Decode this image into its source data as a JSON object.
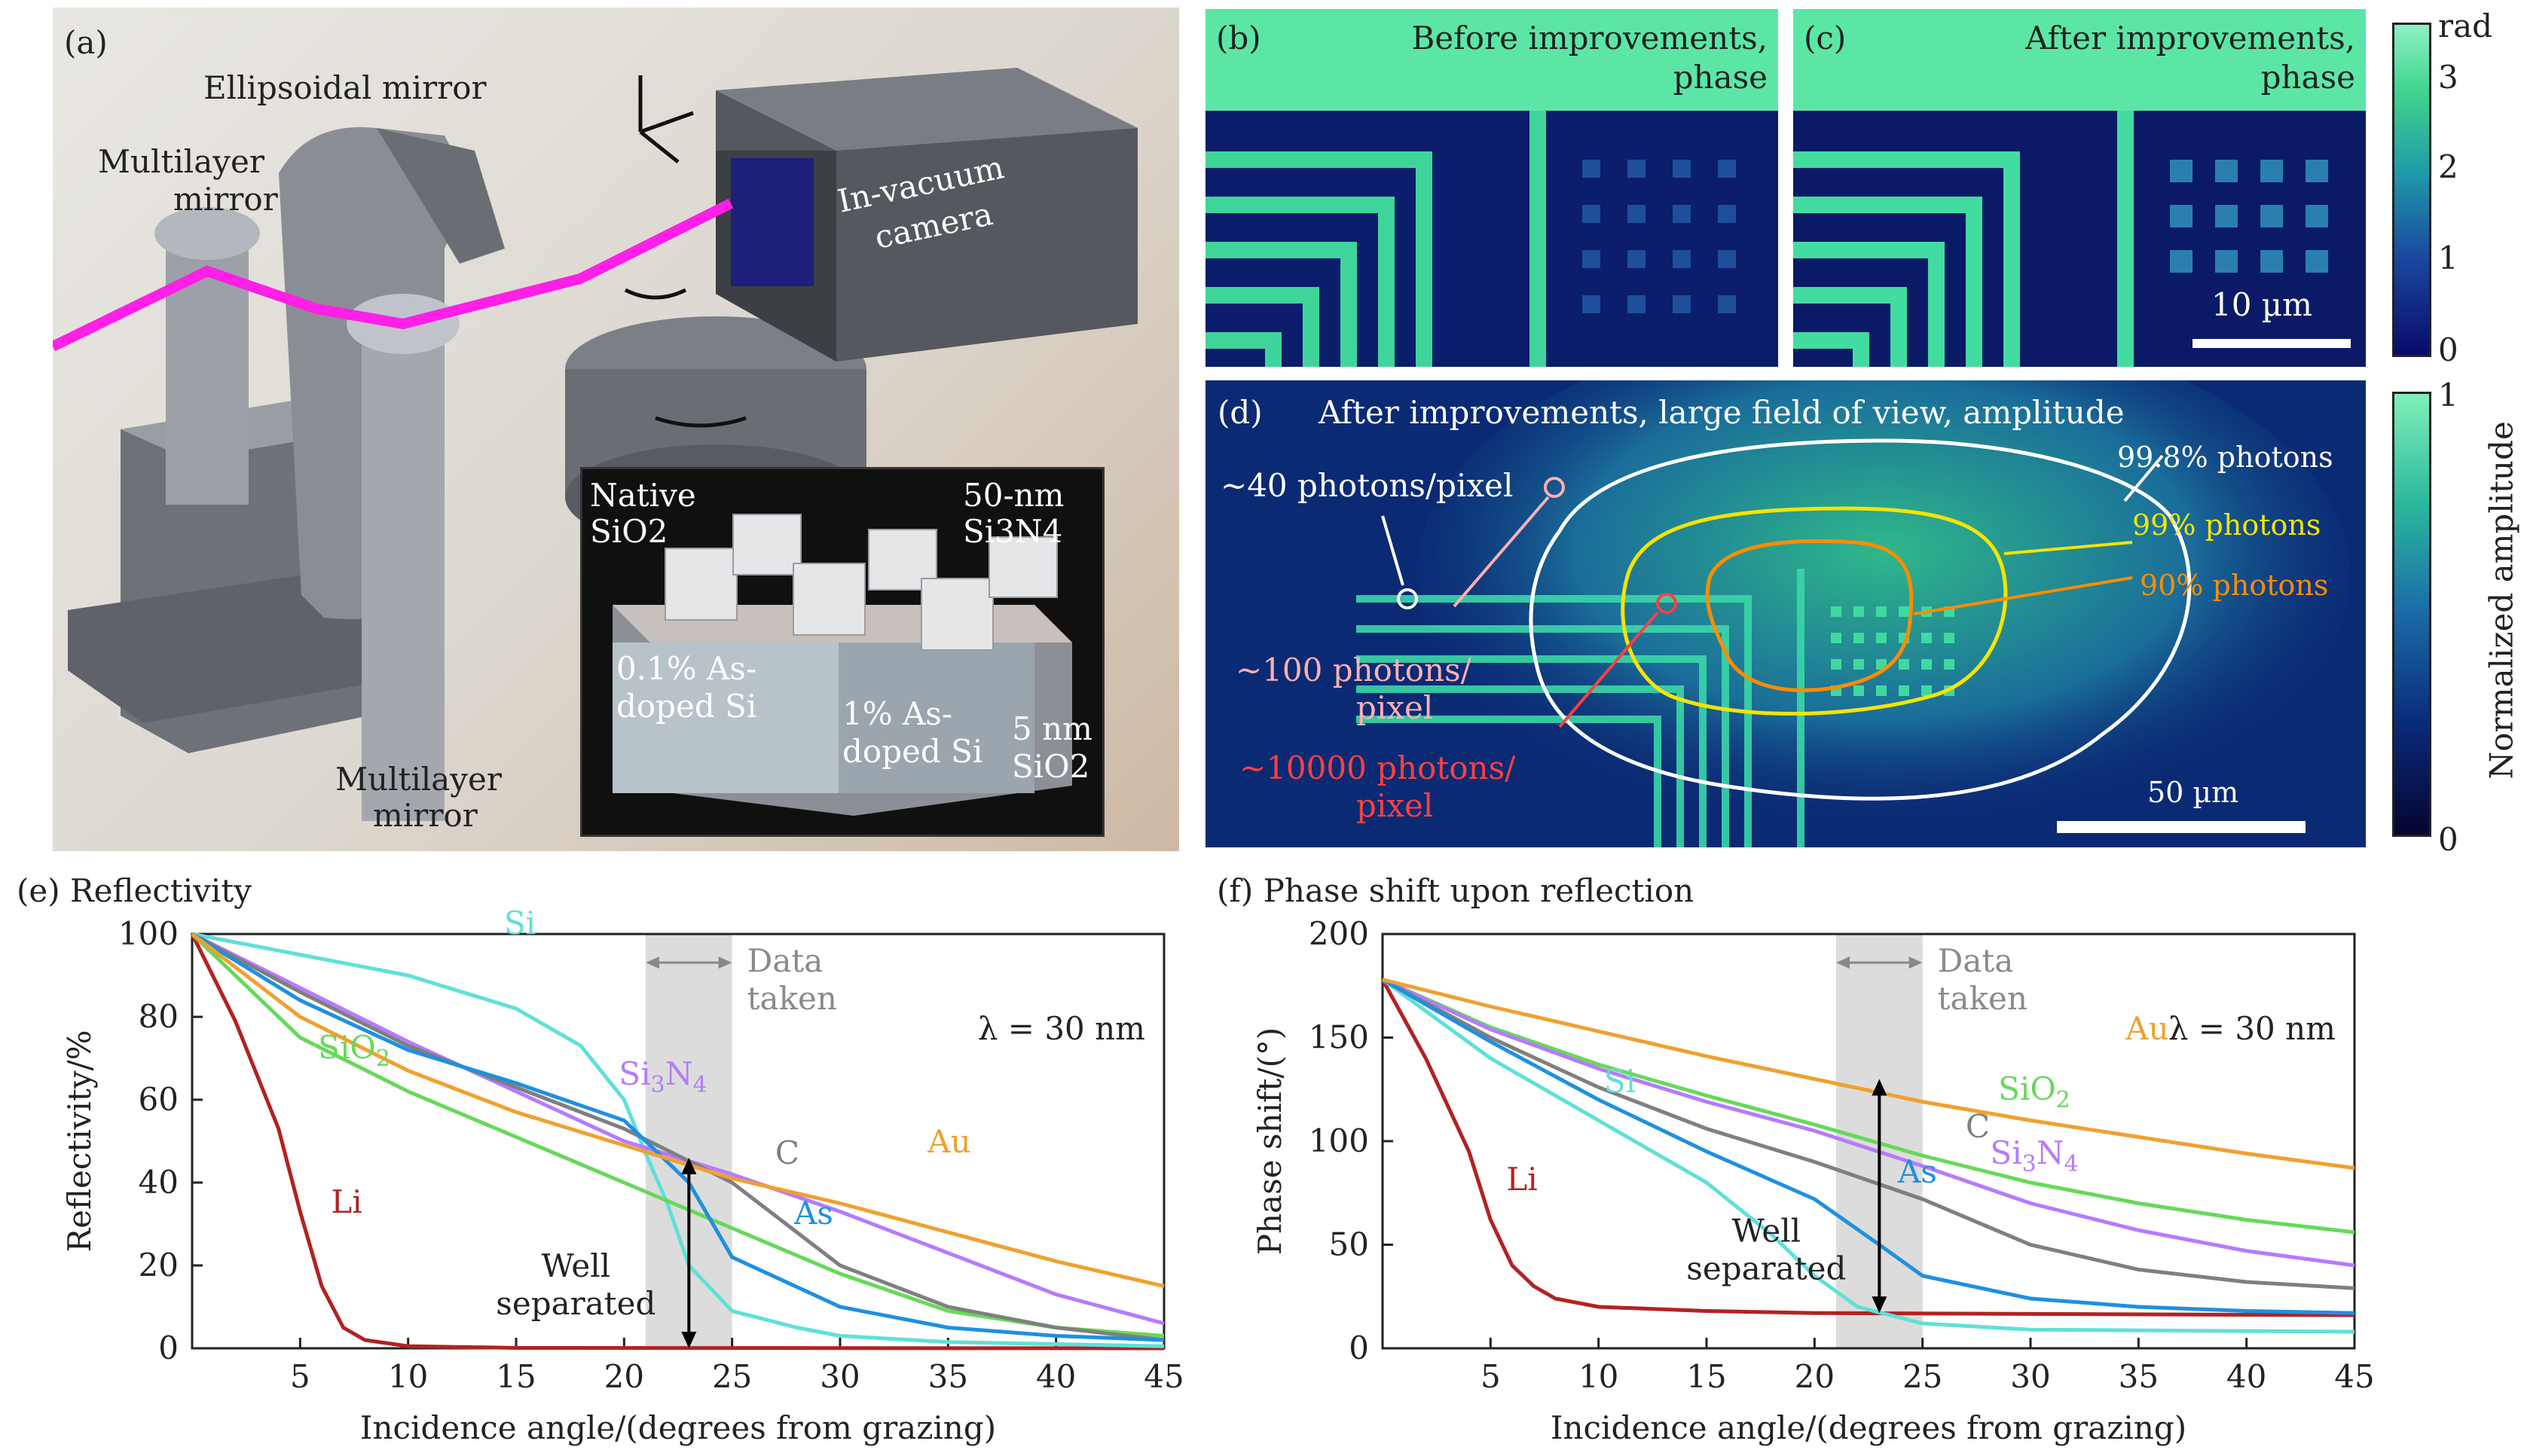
{
  "panel_a": {
    "tag": "(a)",
    "ellipsoidal": "Ellipsoidal mirror",
    "multilayer_top_1": "Multilayer",
    "multilayer_top_2": "mirror",
    "camera_1": "In-vacuum",
    "camera_2": "camera",
    "multilayer_bottom_1": "Multilayer",
    "multilayer_bottom_2": "mirror",
    "inset": {
      "native_1": "Native",
      "native_2": "SiO2",
      "sin_1": "50-nm",
      "sin_2": "Si3N4",
      "doped01_1": "0.1% As-",
      "doped01_2": "doped Si",
      "doped1_1": "1% As-",
      "doped1_2": "doped Si",
      "sio2_1": "5 nm",
      "sio2_2": "SiO2"
    }
  },
  "panel_b": {
    "tag": "(b)",
    "title_1": "Before improvements,",
    "title_2": "phase"
  },
  "panel_c": {
    "tag": "(c)",
    "title_1": "After improvements,",
    "title_2": "phase",
    "scalebar": "10 µm"
  },
  "colorbar_phase": {
    "unit": "rad",
    "ticks": [
      "3",
      "2",
      "1",
      "0"
    ]
  },
  "panel_d": {
    "tag": "(d)",
    "title": "After improvements, large field of view, amplitude",
    "c998": "99.8% photons",
    "c99": "99% photons",
    "c90": "90% photons",
    "p40": "~40 photons/pixel",
    "p100_1": "~100 photons/",
    "p100_2": "pixel",
    "p10000_1": "~10000 photons/",
    "p10000_2": "pixel",
    "scalebar": "50 µm"
  },
  "colorbar_amp": {
    "label": "Normalized amplitude",
    "ticks": [
      "1",
      "0"
    ]
  },
  "colors": {
    "Li": "#b22222",
    "Si": "#5fe0d8",
    "SiO2": "#66d95a",
    "Si3N4": "#b57bff",
    "C": "#7f7f7f",
    "As": "#1e90e0",
    "Au": "#f0a030"
  },
  "chart_data": [
    {
      "type": "line",
      "title": "(e) Reflectivity",
      "xlabel": "Incidence angle/(degrees from grazing)",
      "ylabel": "Reflectivity/%",
      "xlim": [
        0,
        45
      ],
      "ylim": [
        0,
        100
      ],
      "xticks": [
        "5",
        "10",
        "15",
        "20",
        "25",
        "30",
        "35",
        "40",
        "45"
      ],
      "yticks": [
        "0",
        "20",
        "40",
        "60",
        "80",
        "100"
      ],
      "annotation": "λ = 30 nm",
      "band_label_1": "Data",
      "band_label_2": "taken",
      "band": [
        21,
        25
      ],
      "arrow_x": 23,
      "arrow_y": [
        0,
        46
      ],
      "arrow_label_1": "Well",
      "arrow_label_2": "separated",
      "series": [
        {
          "name": "Li",
          "x": [
            0,
            2,
            4,
            5,
            6,
            7,
            8,
            10,
            15,
            45
          ],
          "y": [
            100,
            79,
            53,
            33,
            15,
            5,
            2,
            0.5,
            0.1,
            0
          ]
        },
        {
          "name": "Si",
          "x": [
            0,
            5,
            10,
            15,
            18,
            20,
            21,
            22,
            23,
            25,
            28,
            30,
            35,
            45
          ],
          "y": [
            100,
            95,
            90,
            82,
            73,
            60,
            47,
            35,
            20,
            9,
            5,
            3,
            1.5,
            0.5
          ]
        },
        {
          "name": "SiO2",
          "x": [
            0,
            5,
            10,
            15,
            20,
            25,
            30,
            35,
            40,
            45
          ],
          "y": [
            100,
            75,
            62,
            51,
            40,
            29,
            18,
            9,
            5,
            3
          ]
        },
        {
          "name": "Si3N4",
          "x": [
            0,
            5,
            10,
            15,
            20,
            25,
            30,
            35,
            40,
            45
          ],
          "y": [
            100,
            87,
            74,
            62,
            50,
            42,
            33,
            23,
            13,
            6
          ]
        },
        {
          "name": "C",
          "x": [
            0,
            5,
            10,
            15,
            20,
            25,
            28,
            30,
            35,
            40,
            45
          ],
          "y": [
            100,
            86,
            73,
            63,
            53,
            40,
            28,
            20,
            10,
            5,
            2
          ]
        },
        {
          "name": "As",
          "x": [
            0,
            5,
            10,
            15,
            20,
            23,
            25,
            30,
            35,
            40,
            45
          ],
          "y": [
            100,
            84,
            72,
            64,
            55,
            40,
            22,
            10,
            5,
            3,
            2
          ]
        },
        {
          "name": "Au",
          "x": [
            0,
            5,
            10,
            15,
            20,
            25,
            30,
            35,
            40,
            45
          ],
          "y": [
            100,
            80,
            67,
            57,
            49,
            41,
            35,
            28,
            21,
            15
          ]
        }
      ]
    },
    {
      "type": "line",
      "title": "(f) Phase shift upon reflection",
      "xlabel": "Incidence angle/(degrees from grazing)",
      "ylabel": "Phase shift/(°)",
      "xlim": [
        0,
        45
      ],
      "ylim": [
        0,
        200
      ],
      "xticks": [
        "5",
        "10",
        "15",
        "20",
        "25",
        "30",
        "35",
        "40",
        "45"
      ],
      "yticks": [
        "0",
        "50",
        "100",
        "150",
        "200"
      ],
      "annotation": "λ = 30 nm",
      "band_label_1": "Data",
      "band_label_2": "taken",
      "band": [
        21,
        25
      ],
      "arrow_x": 23,
      "arrow_y": [
        17,
        130
      ],
      "arrow_label_1": "Well",
      "arrow_label_2": "separated",
      "series": [
        {
          "name": "Li",
          "x": [
            0,
            2,
            4,
            5,
            6,
            7,
            8,
            10,
            15,
            20,
            45
          ],
          "y": [
            178,
            140,
            95,
            62,
            40,
            30,
            24,
            20,
            18,
            17,
            16
          ]
        },
        {
          "name": "Si",
          "x": [
            0,
            5,
            10,
            15,
            18,
            20,
            22,
            25,
            30,
            45
          ],
          "y": [
            178,
            140,
            110,
            80,
            55,
            35,
            20,
            12,
            9,
            8
          ]
        },
        {
          "name": "SiO2",
          "x": [
            0,
            5,
            10,
            15,
            20,
            25,
            30,
            35,
            40,
            45
          ],
          "y": [
            178,
            155,
            137,
            122,
            108,
            93,
            80,
            70,
            62,
            56
          ]
        },
        {
          "name": "Si3N4",
          "x": [
            0,
            5,
            10,
            15,
            20,
            25,
            30,
            35,
            40,
            45
          ],
          "y": [
            178,
            154,
            135,
            119,
            105,
            88,
            70,
            57,
            47,
            40
          ]
        },
        {
          "name": "C",
          "x": [
            0,
            5,
            10,
            15,
            20,
            25,
            30,
            35,
            40,
            45
          ],
          "y": [
            178,
            150,
            126,
            106,
            90,
            72,
            50,
            38,
            32,
            29
          ]
        },
        {
          "name": "As",
          "x": [
            0,
            5,
            10,
            15,
            20,
            23,
            25,
            30,
            35,
            40,
            45
          ],
          "y": [
            178,
            148,
            120,
            95,
            72,
            50,
            35,
            24,
            20,
            18,
            17
          ]
        },
        {
          "name": "Au",
          "x": [
            0,
            5,
            10,
            15,
            20,
            25,
            30,
            35,
            40,
            45
          ],
          "y": [
            178,
            165,
            153,
            141,
            130,
            119,
            110,
            102,
            94,
            87
          ]
        }
      ]
    }
  ]
}
